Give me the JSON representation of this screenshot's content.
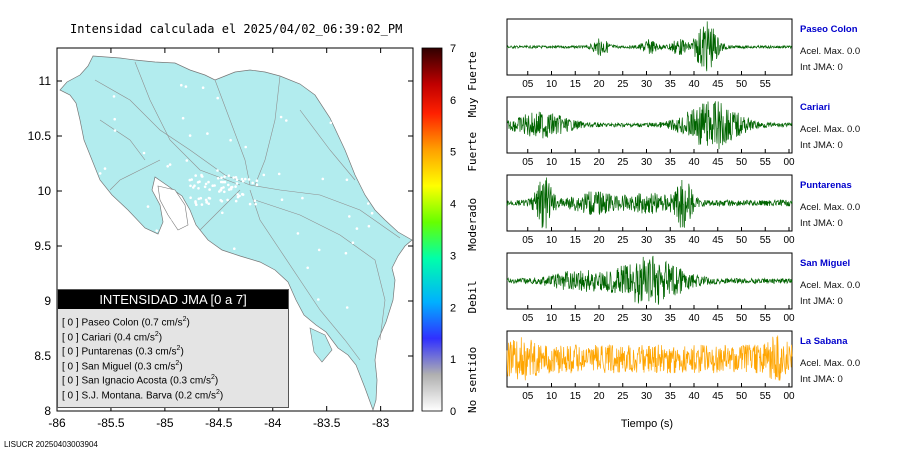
{
  "map": {
    "title": "Intensidad calculada el 2025/04/02_06:39:02_PM",
    "x_ticks": [
      "-86",
      "-85.5",
      "-85",
      "-84.5",
      "-84",
      "-83.5",
      "-83"
    ],
    "y_ticks": [
      "11",
      "10.5",
      "10",
      "9.5",
      "9",
      "8.5",
      "8"
    ],
    "xlim": [
      -86,
      -82.7
    ],
    "ylim": [
      8,
      11.3
    ]
  },
  "colorbar": {
    "ticks": [
      "7",
      "6",
      "5",
      "4",
      "3",
      "2",
      "1",
      "0"
    ],
    "categories": [
      "Muy Fuerte",
      "Fuerte",
      "Moderado",
      "Debil",
      "No sentido"
    ]
  },
  "legend": {
    "title": "INTENSIDAD JMA [0 a 7]",
    "rows": [
      {
        "intensity": "[ 0 ]",
        "name": "Paseo Colon",
        "accel": "(0.7 cm/s",
        "sup": "2",
        "close": ")"
      },
      {
        "intensity": "[ 0 ]",
        "name": "Cariari",
        "accel": "(0.4 cm/s",
        "sup": "2",
        "close": ")"
      },
      {
        "intensity": "[ 0 ]",
        "name": "Puntarenas",
        "accel": "(0.3 cm/s",
        "sup": "2",
        "close": ")"
      },
      {
        "intensity": "[ 0 ]",
        "name": "San Miguel",
        "accel": "(0.3 cm/s",
        "sup": "2",
        "close": ")"
      },
      {
        "intensity": "[ 0 ]",
        "name": "San Ignacio Acosta",
        "accel": "(0.3 cm/s",
        "sup": "2",
        "close": ")"
      },
      {
        "intensity": "[ 0 ]",
        "name": "S.J. Montana. Barva",
        "accel": "(0.2 cm/s",
        "sup": "2",
        "close": ")"
      }
    ]
  },
  "stations": [
    {
      "name": "Paseo Colon",
      "accel_label": "Acel. Max. 0.0",
      "int_label": "Int JMA: 0",
      "color": "#006400",
      "ticks": [
        "05",
        "10",
        "15",
        "20",
        "25",
        "30",
        "35",
        "40",
        "45",
        "50",
        "55"
      ],
      "bursts": [
        [
          0.33,
          0.3,
          0.03
        ],
        [
          0.5,
          0.25,
          0.03
        ],
        [
          0.7,
          1.0,
          0.04
        ],
        [
          0.6,
          0.3,
          0.03
        ]
      ],
      "noise": 0.05
    },
    {
      "name": "Cariari",
      "accel_label": "Acel. Max. 0.0",
      "int_label": "Int JMA: 0",
      "color": "#006400",
      "ticks": [
        "05",
        "10",
        "15",
        "20",
        "25",
        "30",
        "35",
        "40",
        "45",
        "50",
        "55",
        "00"
      ],
      "bursts": [
        [
          0.12,
          0.45,
          0.1
        ],
        [
          0.72,
          0.9,
          0.1
        ]
      ],
      "noise": 0.08
    },
    {
      "name": "Puntarenas",
      "accel_label": "Acel. Max. 0.0",
      "int_label": "Int JMA: 0",
      "color": "#006400",
      "ticks": [
        "05",
        "10",
        "15",
        "20",
        "25",
        "30",
        "35",
        "40",
        "45",
        "50",
        "55",
        "00"
      ],
      "bursts": [
        [
          0.13,
          0.95,
          0.03
        ],
        [
          0.3,
          0.35,
          0.08
        ],
        [
          0.62,
          0.9,
          0.03
        ],
        [
          0.5,
          0.3,
          0.1
        ]
      ],
      "noise": 0.12
    },
    {
      "name": "San Miguel",
      "accel_label": "Acel. Max. 0.0",
      "int_label": "Int JMA: 0",
      "color": "#006400",
      "ticks": [
        "05",
        "10",
        "15",
        "20",
        "25",
        "30",
        "35",
        "40",
        "45",
        "50",
        "55",
        "00"
      ],
      "bursts": [
        [
          0.5,
          0.9,
          0.12
        ],
        [
          0.25,
          0.35,
          0.1
        ]
      ],
      "noise": 0.1
    },
    {
      "name": "La Sabana",
      "accel_label": "Acel. Max. 0.0",
      "int_label": "Int JMA: 0",
      "color": "#ffa500",
      "ticks": [
        "05",
        "10",
        "15",
        "20",
        "25",
        "30",
        "35",
        "40",
        "45",
        "50",
        "55",
        "00"
      ],
      "bursts": [
        [
          0.95,
          0.6,
          0.03
        ],
        [
          0.05,
          0.3,
          0.05
        ]
      ],
      "noise": 0.55
    }
  ],
  "xaxis_label": "Tiempo (s)",
  "footer": "LISUCR 20250403003904"
}
